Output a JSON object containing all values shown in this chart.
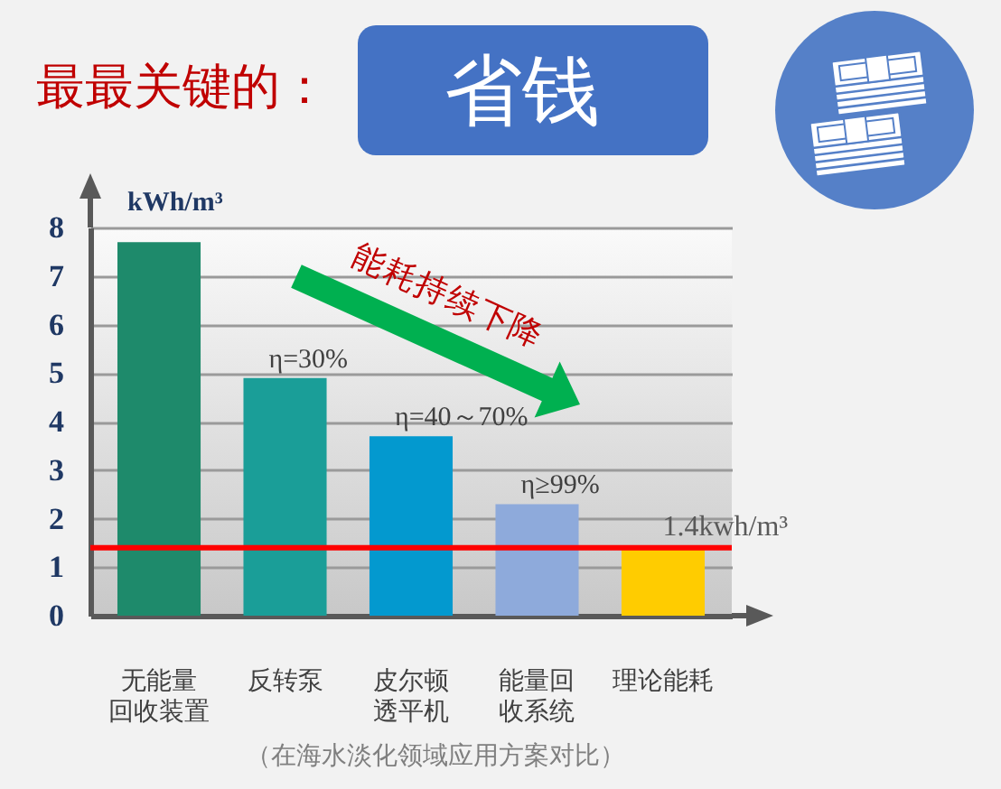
{
  "chart_data": {
    "type": "bar",
    "title": "最最关键的：",
    "subtitle": "省钱",
    "ylabel": "kWh/m³",
    "categories": [
      "无能量回收装置",
      "反转泵",
      "皮尔顿透平机",
      "能量回收系统",
      "理论能耗"
    ],
    "values": [
      7.7,
      4.9,
      3.7,
      2.3,
      1.4
    ],
    "colors": [
      "#1e8a6b",
      "#1a9e98",
      "#0399cf",
      "#8eaadb",
      "#ffcc00"
    ],
    "ylim": [
      0,
      8
    ],
    "yticks": [
      0,
      1,
      2,
      3,
      4,
      5,
      6,
      7,
      8
    ],
    "grid": "y",
    "ref_lines": [
      {
        "axis": "y",
        "value": 1.4,
        "label": "1.4kwh/m³",
        "color": "#ff0000"
      }
    ],
    "annotations": [
      {
        "text": "η=30%",
        "x": "反转泵",
        "y": 4.9
      },
      {
        "text": "η=40～70%",
        "x": "皮尔顿透平机",
        "y": 3.7
      },
      {
        "text": "η≥99%",
        "x": "能量回收系统",
        "y": 2.3
      },
      "能耗持续下降",
      "（在海水淡化领域应用方案对比）"
    ]
  }
}
